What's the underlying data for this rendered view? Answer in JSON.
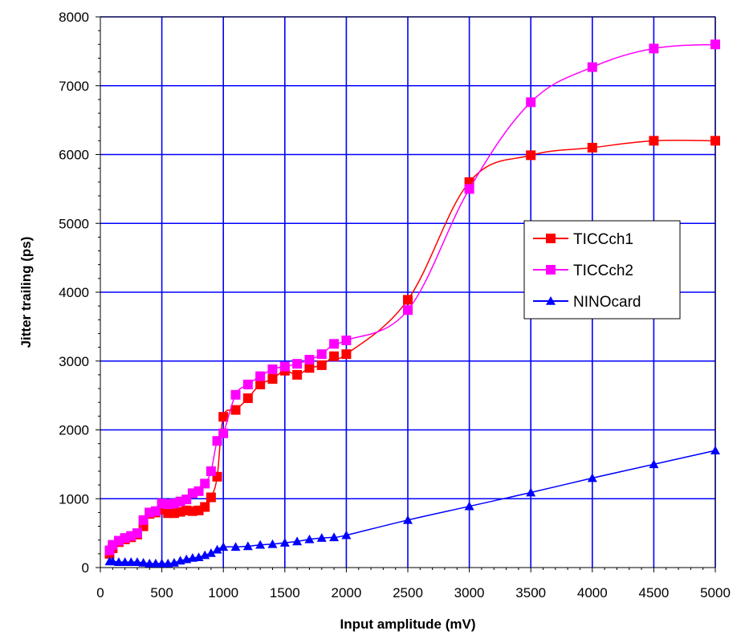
{
  "chart_data": {
    "type": "line",
    "xlabel": "Input amplitude (mV)",
    "ylabel": "Jitter trailing (ps)",
    "xlim": [
      0,
      5000
    ],
    "ylim": [
      0,
      8000
    ],
    "xticks": [
      0,
      500,
      1000,
      1500,
      2000,
      2500,
      3000,
      3500,
      4000,
      4500,
      5000
    ],
    "yticks": [
      0,
      1000,
      2000,
      3000,
      4000,
      5000,
      6000,
      7000,
      8000
    ],
    "grid": true,
    "legend_position": "right",
    "series": [
      {
        "name": "TICCch1",
        "color": "#ff0000",
        "marker": "square",
        "x": [
          75,
          100,
          150,
          200,
          250,
          300,
          350,
          400,
          450,
          500,
          550,
          600,
          650,
          700,
          750,
          800,
          850,
          900,
          950,
          1000,
          1100,
          1200,
          1300,
          1400,
          1500,
          1600,
          1700,
          1800,
          1900,
          2000,
          2500,
          3000,
          3500,
          4000,
          4500,
          5000
        ],
        "y": [
          200,
          280,
          370,
          410,
          440,
          480,
          600,
          780,
          800,
          840,
          790,
          790,
          810,
          830,
          820,
          830,
          880,
          1020,
          1320,
          2190,
          2290,
          2460,
          2660,
          2740,
          2860,
          2800,
          2900,
          2940,
          3070,
          3100,
          3890,
          5600,
          5990,
          6100,
          6200,
          6200
        ]
      },
      {
        "name": "TICCch2",
        "color": "#ff00ff",
        "marker": "square",
        "x": [
          75,
          100,
          150,
          200,
          250,
          300,
          350,
          400,
          450,
          500,
          550,
          600,
          650,
          700,
          750,
          800,
          850,
          900,
          950,
          1000,
          1100,
          1200,
          1300,
          1400,
          1500,
          1600,
          1700,
          1800,
          1900,
          2000,
          2500,
          3000,
          3500,
          4000,
          4500,
          5000
        ],
        "y": [
          250,
          330,
          390,
          430,
          460,
          500,
          690,
          800,
          820,
          930,
          920,
          930,
          960,
          990,
          1080,
          1110,
          1220,
          1400,
          1840,
          1950,
          2510,
          2660,
          2780,
          2880,
          2920,
          2960,
          3020,
          3100,
          3250,
          3300,
          3740,
          5500,
          6760,
          7270,
          7540,
          7600
        ]
      },
      {
        "name": "NINOcard",
        "color": "#0000ff",
        "marker": "triangle",
        "x": [
          75,
          100,
          150,
          200,
          250,
          300,
          350,
          400,
          450,
          500,
          550,
          600,
          650,
          700,
          750,
          800,
          850,
          900,
          950,
          1000,
          1100,
          1200,
          1300,
          1400,
          1500,
          1600,
          1700,
          1800,
          1900,
          2000,
          2500,
          3000,
          3500,
          4000,
          4500,
          5000
        ],
        "y": [
          90,
          90,
          80,
          80,
          80,
          80,
          70,
          60,
          60,
          60,
          60,
          70,
          100,
          120,
          140,
          150,
          180,
          210,
          260,
          300,
          300,
          310,
          330,
          340,
          360,
          380,
          410,
          430,
          440,
          470,
          690,
          890,
          1090,
          1300,
          1500,
          1700
        ]
      }
    ]
  }
}
